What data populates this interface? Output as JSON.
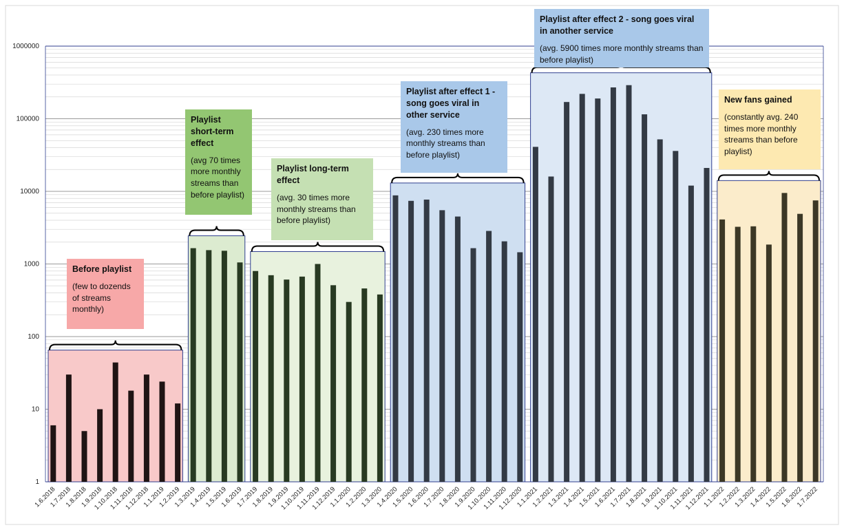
{
  "chart_data": {
    "type": "bar",
    "yscale": "log",
    "ylim": [
      1,
      1000000
    ],
    "yticks": [
      "1",
      "10",
      "100",
      "1000",
      "10000",
      "100000",
      "1000000"
    ],
    "categories": [
      "1.6.2018",
      "1.7.2018",
      "1.8.2018",
      "1.9.2018",
      "1.10.2018",
      "1.11.2018",
      "1.12.2018",
      "1.1.2019",
      "1.2.2019",
      "1.3.2019",
      "1.4.2019",
      "1.5.2019",
      "1.6.2019",
      "1.7.2019",
      "1.8.2019",
      "1.9.2019",
      "1.10.2019",
      "1.11.2019",
      "1.12.2019",
      "1.1.2020",
      "1.2.2020",
      "1.3.2020",
      "1.4.2020",
      "1.5.2020",
      "1.6.2020",
      "1.7.2020",
      "1.8.2020",
      "1.9.2020",
      "1.10.2020",
      "1.11.2020",
      "1.12.2020",
      "1.1.2021",
      "1.2.2021",
      "1.3.2021",
      "1.4.2021",
      "1.5.2021",
      "1.6.2021",
      "1.7.2021",
      "1.8.2021",
      "1.9.2021",
      "1.10.2021",
      "1.11.2021",
      "1.12.2021",
      "1.1.2022",
      "1.2.2022",
      "1.3.2022",
      "1.4.2022",
      "1.5.2022",
      "1.6.2022",
      "1.7.2022"
    ],
    "values": [
      6,
      30,
      5,
      10,
      44,
      18,
      30,
      24,
      12,
      1650,
      1550,
      1520,
      1050,
      800,
      700,
      610,
      670,
      1000,
      510,
      300,
      460,
      380,
      8800,
      7400,
      7700,
      5500,
      4500,
      1650,
      2850,
      2050,
      1450,
      41000,
      16000,
      170000,
      220000,
      190000,
      270000,
      290000,
      115000,
      52000,
      36000,
      12000,
      21000,
      4100,
      3250,
      3300,
      1850,
      9500,
      4900,
      7500
    ],
    "grid": true,
    "phases": [
      {
        "title": "Before playlist",
        "desc": "(few to dozends of streams monthly)",
        "fill": "#f8c9c9",
        "label_color": "#f7a8a8",
        "start": 0,
        "end": 8
      },
      {
        "title": "Playlist short-term effect",
        "desc": "(avg 70 times more monthly streams than before playlist)",
        "fill": "#dcebd0",
        "label_color": "#93c672",
        "start": 9,
        "end": 12
      },
      {
        "title": "Playlist long-term effect",
        "desc": "(avg. 30 times more monthly streams than before playlist)",
        "fill": "#e8f2de",
        "label_color": "#c5e0b3",
        "start": 13,
        "end": 21
      },
      {
        "title": "Playlist after effect 1 - song goes viral in other service",
        "desc": "(avg. 230 times more monthly streams than before playlist)",
        "fill": "#cfdff1",
        "label_color": "#a9c8e9",
        "start": 22,
        "end": 30
      },
      {
        "title": "Playlist after effect 2 - song goes viral in another service",
        "desc": "(avg. 5900 times more  monthly streams than before playlist)",
        "fill": "#dde8f5",
        "label_color": "#a9c8e9",
        "start": 31,
        "end": 42
      },
      {
        "title": "New fans gained",
        "desc": "(constantly avg. 240 times more monthly streams than before playlist)",
        "fill": "#fbeccb",
        "label_color": "#fde9b1",
        "start": 43,
        "end": 49
      }
    ]
  }
}
